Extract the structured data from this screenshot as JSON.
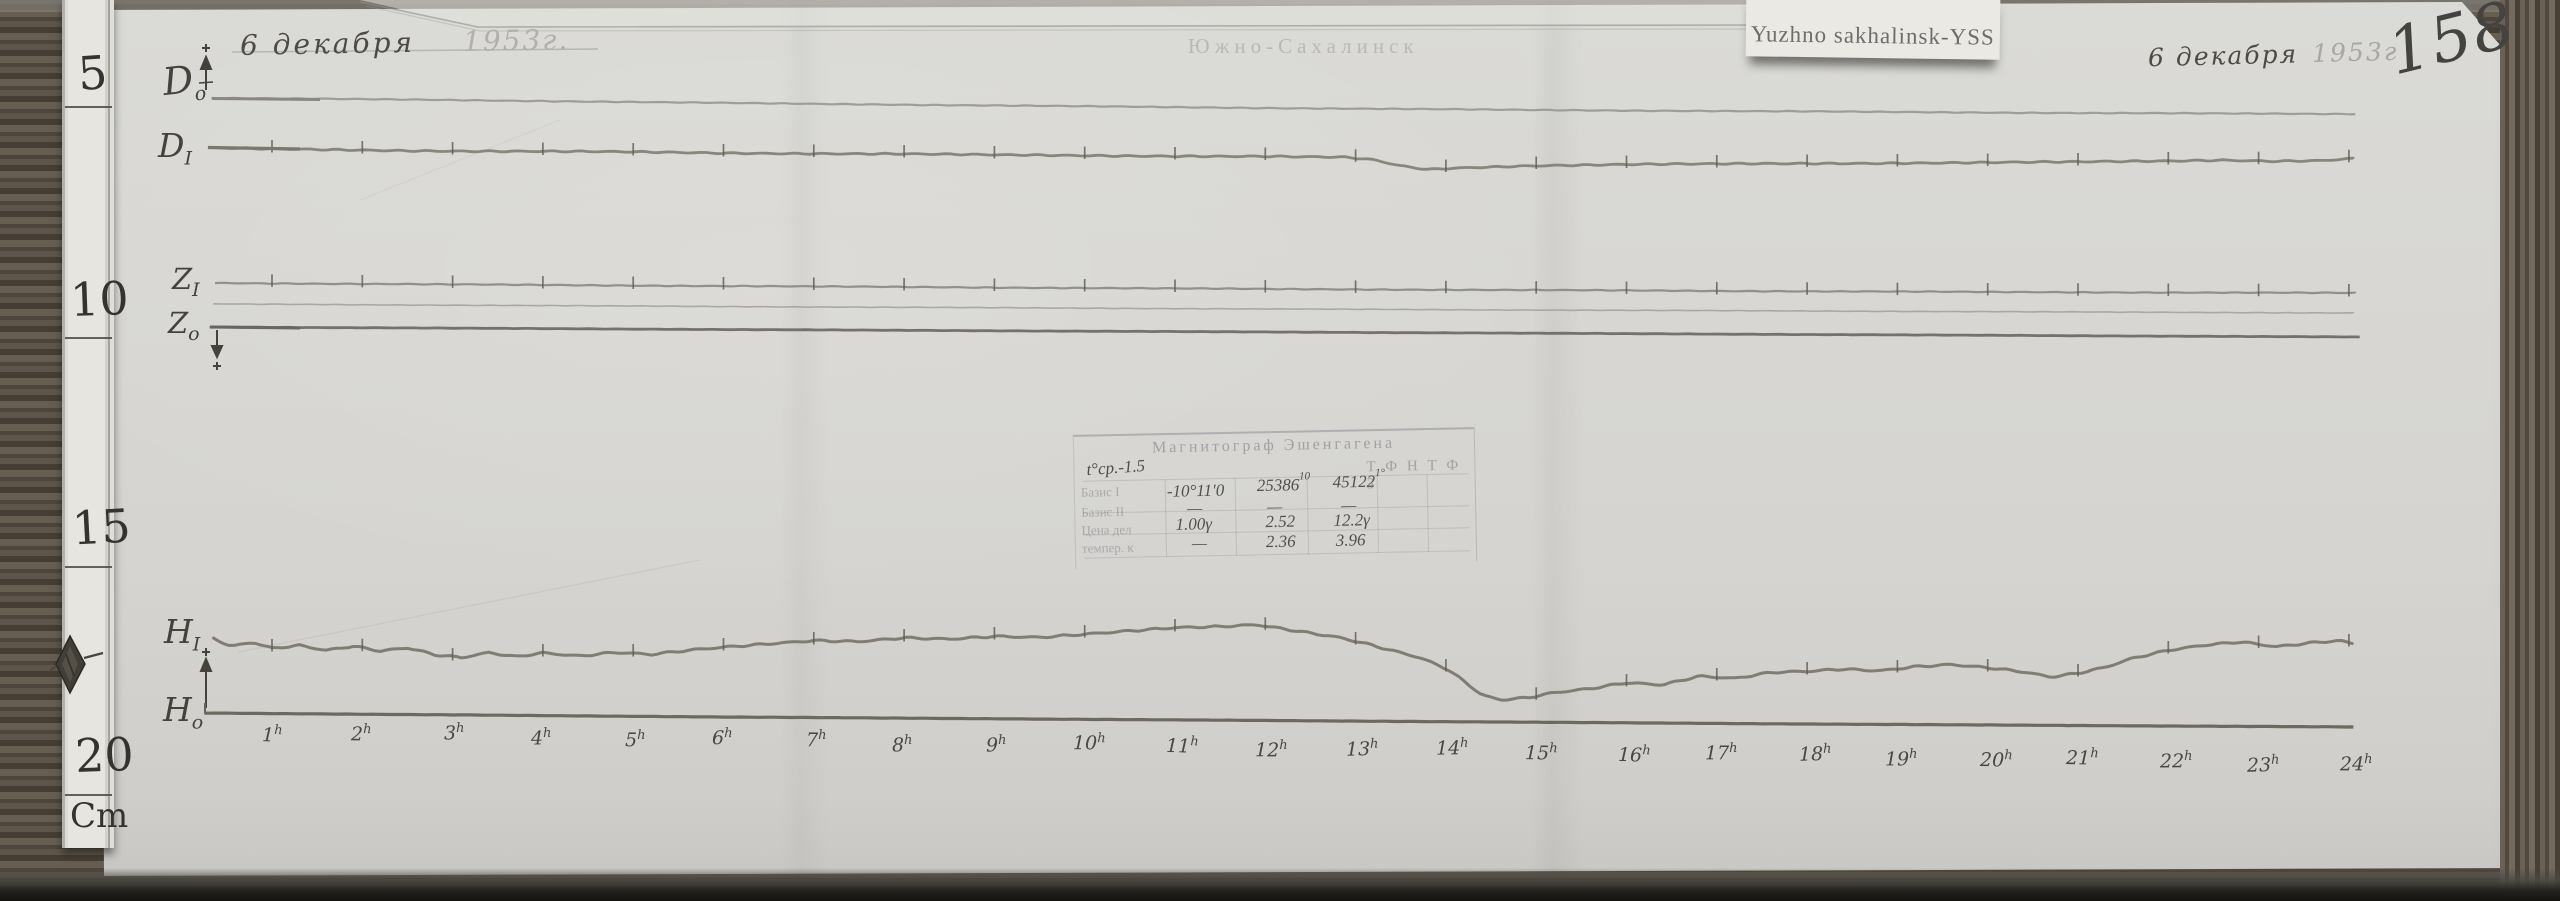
{
  "sheet": {
    "station_label": "Yuzhno sakhalinsk-YSS",
    "date_left": {
      "day": "6 декабря",
      "year_stamp": "1953г."
    },
    "city_stamp": "Южно-Сахалинск",
    "date_right": {
      "day": "6 декабря",
      "year_stamp": "1953г",
      "sheet_number": "158"
    }
  },
  "ruler": {
    "marks": [
      "5",
      "10",
      "15",
      "20"
    ],
    "unit": "Cm"
  },
  "trace_labels": {
    "d_baseline": {
      "base": "D",
      "sub": "o"
    },
    "d_trace": {
      "base": "D",
      "sub": "I"
    },
    "z_trace": {
      "base": "Z",
      "sub": "I"
    },
    "z_baseline": {
      "base": "Z",
      "sub": "o"
    },
    "h_trace": {
      "base": "H",
      "sub": "I"
    },
    "h_baseline": {
      "base": "H",
      "sub": "o"
    }
  },
  "stamp_table": {
    "title": "Магнитограф Эшенгагена",
    "temp_note": "t°ср.-1.5",
    "right_header": "Т Ф Н  Т Ф З",
    "rows": [
      {
        "label": "Базис I",
        "values": [
          "-10°11′0",
          "25386",
          "45122"
        ],
        "sups": [
          "",
          "10",
          "1°"
        ]
      },
      {
        "label": "Базис II",
        "values": [
          "—",
          "—",
          "—"
        ],
        "sups": [
          "",
          "",
          ""
        ]
      },
      {
        "label": "Цена дел",
        "values": [
          "1.00γ",
          "2.52",
          "12.2γ"
        ],
        "sups": [
          "",
          "",
          ""
        ]
      },
      {
        "label": "темпер. к",
        "values": [
          "—",
          "2.36",
          "3.96"
        ],
        "sups": [
          "",
          "",
          ""
        ]
      }
    ]
  },
  "x_axis": {
    "suffix": "h",
    "hours": [
      "1",
      "2",
      "3",
      "4",
      "5",
      "6",
      "7",
      "8",
      "9",
      "10",
      "11",
      "12",
      "13",
      "14",
      "15",
      "16",
      "17",
      "18",
      "19",
      "20",
      "21",
      "22",
      "23",
      "24"
    ]
  },
  "chart_data": {
    "type": "line",
    "x_unit": "hour of day, 1h–24h marks",
    "x_domain": [
      0.2,
      24.2
    ],
    "y_note": "y values are vertical positions on the scanned sheet in pixels (down = positive); traces are magnetogram curves D, Z, H with their baselines",
    "x_tick_hours": [
      1,
      2,
      3,
      4,
      5,
      6,
      7,
      8,
      9,
      10,
      11,
      12,
      13,
      14,
      15,
      16,
      17,
      18,
      19,
      20,
      21,
      22,
      23,
      24
    ],
    "series": [
      {
        "id": "d-baseline",
        "name": "D0 baseline",
        "color": "#9c9a94",
        "width": 2.2,
        "jitter": 0.5,
        "ticks": false,
        "points": [
          [
            0.33,
            98
          ],
          [
            3,
            100
          ],
          [
            6,
            103
          ],
          [
            9,
            105.5
          ],
          [
            12,
            108
          ],
          [
            15,
            110
          ],
          [
            18,
            111.5
          ],
          [
            21,
            113
          ],
          [
            24.07,
            114
          ]
        ]
      },
      {
        "id": "d-trace",
        "name": "D variation trace",
        "color": "#858278",
        "width": 2.8,
        "jitter": 0.9,
        "ticks": true,
        "points": [
          [
            0.29,
            148
          ],
          [
            1,
            149
          ],
          [
            2,
            150
          ],
          [
            3,
            151
          ],
          [
            4,
            151.5
          ],
          [
            5,
            152
          ],
          [
            6,
            153
          ],
          [
            7,
            153.5
          ],
          [
            8,
            154
          ],
          [
            9,
            155
          ],
          [
            10,
            155.5
          ],
          [
            11,
            156
          ],
          [
            12,
            156.5
          ],
          [
            12.9,
            157.5
          ],
          [
            13.2,
            160
          ],
          [
            13.5,
            166
          ],
          [
            13.8,
            169.5
          ],
          [
            14.1,
            168
          ],
          [
            14.6,
            166.5
          ],
          [
            15,
            165.5
          ],
          [
            16,
            164.5
          ],
          [
            17,
            164
          ],
          [
            18,
            163.5
          ],
          [
            19,
            163
          ],
          [
            20,
            162.5
          ],
          [
            21,
            162
          ],
          [
            22,
            161
          ],
          [
            22.6,
            160
          ],
          [
            23.2,
            161
          ],
          [
            23.7,
            160.5
          ],
          [
            24.05,
            158.5
          ]
        ]
      },
      {
        "id": "z-trace",
        "name": "Z variation trace",
        "color": "#8e8c86",
        "width": 2.2,
        "jitter": 0.5,
        "ticks": true,
        "points": [
          [
            0.37,
            283
          ],
          [
            4,
            285
          ],
          [
            8,
            287
          ],
          [
            12,
            289
          ],
          [
            16,
            290.5
          ],
          [
            20,
            292
          ],
          [
            24.07,
            293
          ]
        ]
      },
      {
        "id": "z-mid-baseline",
        "name": "faint middle line",
        "color": "#a7a59e",
        "width": 1.6,
        "jitter": 0.3,
        "ticks": false,
        "points": [
          [
            0.35,
            304
          ],
          [
            6,
            306.5
          ],
          [
            12,
            309
          ],
          [
            18,
            311
          ],
          [
            24.05,
            313
          ]
        ]
      },
      {
        "id": "z-baseline",
        "name": "Z0 baseline",
        "color": "#706d67",
        "width": 2.8,
        "jitter": 0.2,
        "ticks": false,
        "points": [
          [
            0.31,
            327
          ],
          [
            6,
            329.5
          ],
          [
            12,
            332
          ],
          [
            18,
            334.5
          ],
          [
            24.12,
            337
          ]
        ]
      },
      {
        "id": "h-trace",
        "name": "H variation trace",
        "color": "#7b786f",
        "width": 3,
        "jitter": 1.3,
        "ticks": true,
        "points": [
          [
            0.34,
            638
          ],
          [
            0.55,
            646
          ],
          [
            0.8,
            642
          ],
          [
            1.0,
            648
          ],
          [
            1.3,
            645
          ],
          [
            1.6,
            650
          ],
          [
            1.9,
            646
          ],
          [
            2.2,
            651
          ],
          [
            2.5,
            648
          ],
          [
            2.8,
            655
          ],
          [
            3.1,
            658
          ],
          [
            3.4,
            653
          ],
          [
            3.7,
            657
          ],
          [
            4.0,
            653
          ],
          [
            4.4,
            656
          ],
          [
            4.8,
            652
          ],
          [
            5.2,
            654
          ],
          [
            5.6,
            650
          ],
          [
            6.0,
            647
          ],
          [
            6.5,
            644
          ],
          [
            7.0,
            641
          ],
          [
            7.5,
            642
          ],
          [
            8.0,
            638
          ],
          [
            8.5,
            639
          ],
          [
            9.0,
            636
          ],
          [
            9.5,
            637
          ],
          [
            10.0,
            634
          ],
          [
            10.5,
            631
          ],
          [
            11.0,
            628
          ],
          [
            11.5,
            627
          ],
          [
            11.9,
            625
          ],
          [
            12.2,
            629
          ],
          [
            12.5,
            633
          ],
          [
            12.8,
            637
          ],
          [
            13.1,
            643
          ],
          [
            13.4,
            650
          ],
          [
            13.7,
            657
          ],
          [
            14.0,
            668
          ],
          [
            14.2,
            681
          ],
          [
            14.4,
            695
          ],
          [
            14.6,
            700
          ],
          [
            14.9,
            698
          ],
          [
            15.2,
            693
          ],
          [
            15.6,
            689
          ],
          [
            16.0,
            683
          ],
          [
            16.4,
            685
          ],
          [
            16.8,
            676
          ],
          [
            17.2,
            678
          ],
          [
            17.6,
            672
          ],
          [
            18.0,
            671
          ],
          [
            18.4,
            669
          ],
          [
            18.8,
            671
          ],
          [
            19.2,
            667
          ],
          [
            19.6,
            665
          ],
          [
            20.0,
            668
          ],
          [
            20.4,
            672
          ],
          [
            20.7,
            677
          ],
          [
            21.0,
            673
          ],
          [
            21.3,
            667
          ],
          [
            21.6,
            658
          ],
          [
            22.0,
            650
          ],
          [
            22.4,
            645
          ],
          [
            22.8,
            642
          ],
          [
            23.2,
            647
          ],
          [
            23.6,
            643
          ],
          [
            23.9,
            641
          ],
          [
            24.05,
            644
          ]
        ]
      },
      {
        "id": "h-baseline",
        "name": "H0 baseline",
        "color": "#66635a",
        "width": 3.2,
        "jitter": 0.15,
        "ticks": false,
        "points": [
          [
            0.25,
            713
          ],
          [
            6,
            717
          ],
          [
            12,
            720.5
          ],
          [
            18,
            724
          ],
          [
            24.05,
            727
          ]
        ]
      }
    ]
  }
}
